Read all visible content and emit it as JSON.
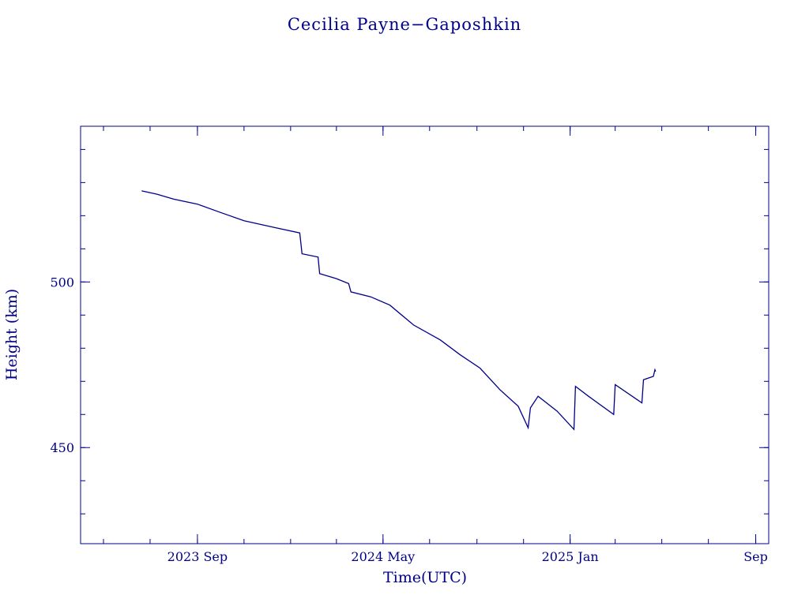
{
  "chart_data": {
    "type": "line",
    "title": "Cecilia Payne−Gaposhkin",
    "xlabel": "Time(UTC)",
    "ylabel": "Height (km)",
    "ylim": [
      421,
      547
    ],
    "xlim": [
      "2023-04-01",
      "2025-09-18"
    ],
    "grid": false,
    "line_color": "#00008b",
    "x_ticks": [
      {
        "date": "2023-09-01",
        "label": "2023 Sep"
      },
      {
        "date": "2024-05-01",
        "label": "2024 May"
      },
      {
        "date": "2025-01-01",
        "label": "2025 Jan"
      },
      {
        "date": "2025-09-01",
        "label": "Sep"
      }
    ],
    "y_ticks": [
      {
        "value": 450,
        "label": "450"
      },
      {
        "value": 500,
        "label": "500"
      }
    ],
    "y_minor_step": 10,
    "series": [
      {
        "x": [
          "2023-06-20",
          "2023-07-10",
          "2023-08-01",
          "2023-09-01",
          "2023-10-01",
          "2023-11-01",
          "2023-12-10",
          "2024-01-13",
          "2024-01-16",
          "2024-02-06",
          "2024-02-08",
          "2024-03-01",
          "2024-03-17",
          "2024-03-20",
          "2024-04-15",
          "2024-05-10",
          "2024-06-10",
          "2024-07-15",
          "2024-08-10",
          "2024-09-05",
          "2024-10-01",
          "2024-10-25",
          "2024-11-07",
          "2024-11-10",
          "2024-11-20",
          "2024-12-15",
          "2025-01-06",
          "2025-01-08",
          "2025-01-25",
          "2025-02-27",
          "2025-03-01",
          "2025-04-05",
          "2025-04-07",
          "2025-04-20",
          "2025-04-22",
          "2025-04-23"
        ],
        "y": [
          527.5,
          526.5,
          525.0,
          523.5,
          521.0,
          518.5,
          516.5,
          514.8,
          508.5,
          507.5,
          502.5,
          501.0,
          499.5,
          497.0,
          495.5,
          493.0,
          487.0,
          482.5,
          478.0,
          474.0,
          467.5,
          462.5,
          456.0,
          462.0,
          465.5,
          461.0,
          455.5,
          468.5,
          465.5,
          460.0,
          469.0,
          463.5,
          470.5,
          471.5,
          473.5,
          473.0
        ]
      }
    ]
  }
}
